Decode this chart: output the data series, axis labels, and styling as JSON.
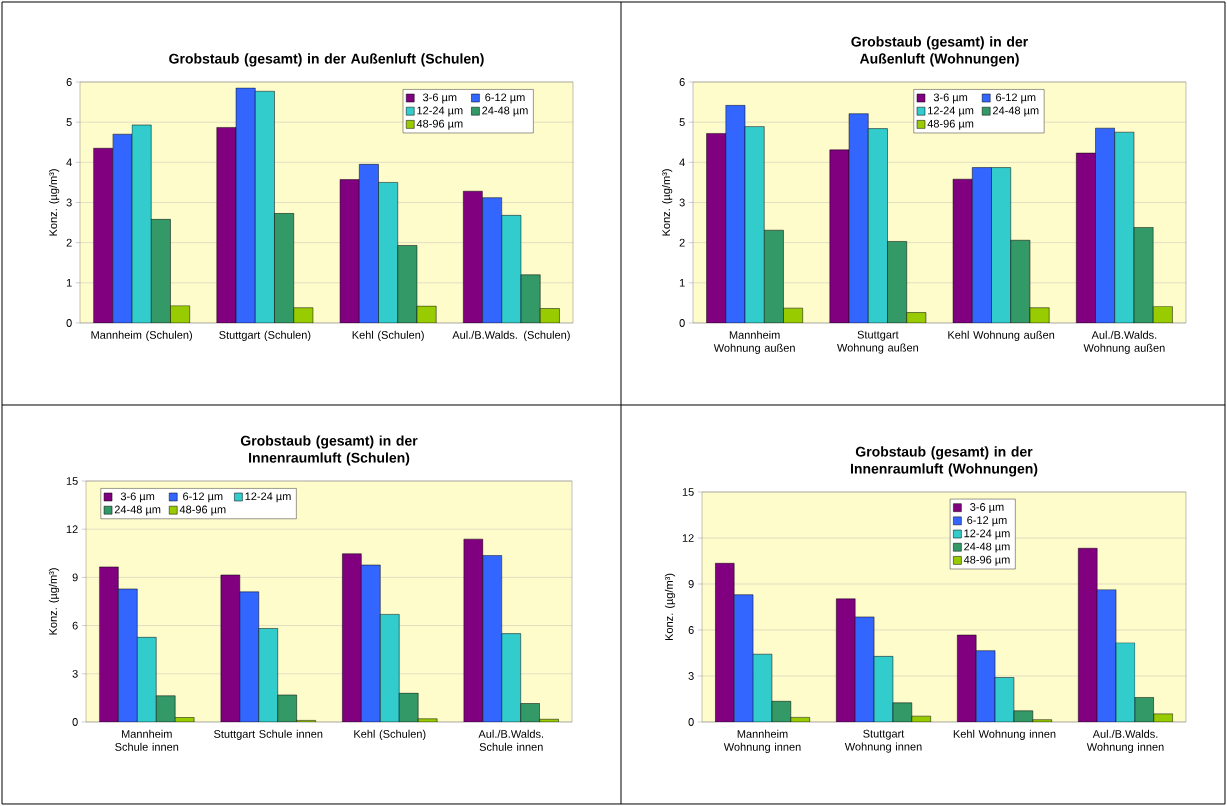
{
  "chart_data": [
    {
      "type": "bar",
      "title": "Grobstaub (gesamt) in der Außenluft (Schulen)",
      "ylabel": "Konz. (µg/m³)",
      "categories": [
        "Mannheim (Schulen)",
        "Stuttgart (Schulen)",
        "Kehl (Schulen)",
        "Aul./B.Walds. (Schulen)"
      ],
      "ylim": [
        0,
        6
      ],
      "yticks": [
        0,
        1,
        2,
        3,
        4,
        5,
        6
      ],
      "grid": "y",
      "legend": "top right",
      "series": [
        {
          "name": "3-6 µm",
          "color": "#800080",
          "values": [
            4.35,
            4.87,
            3.57,
            3.28
          ]
        },
        {
          "name": "6-12 µm",
          "color": "#3366ff",
          "values": [
            4.7,
            5.85,
            3.95,
            3.12
          ]
        },
        {
          "name": "12-24 µm",
          "color": "#33cccc",
          "values": [
            4.93,
            5.77,
            3.5,
            2.68
          ]
        },
        {
          "name": "24-48 µm",
          "color": "#339966",
          "values": [
            2.58,
            2.73,
            1.93,
            1.2
          ]
        },
        {
          "name": "48-96 µm",
          "color": "#99cc00",
          "values": [
            0.43,
            0.38,
            0.42,
            0.36
          ]
        }
      ]
    },
    {
      "type": "bar",
      "title": "Grobstaub (gesamt) in der Außenluft (Wohnungen)",
      "ylabel": "Konz. (µg/m³)",
      "categories": [
        "Mannheim Wohnung außen",
        "Stuttgart Wohnung außen",
        "Kehl Wohnung außen",
        "Aul./B.Walds. Wohnung außen"
      ],
      "ylim": [
        0,
        6
      ],
      "yticks": [
        0,
        1,
        2,
        3,
        4,
        5,
        6
      ],
      "grid": "y",
      "legend": "top",
      "series": [
        {
          "name": "3-6 µm",
          "color": "#800080",
          "values": [
            4.72,
            4.31,
            3.58,
            4.23
          ]
        },
        {
          "name": "6-12 µm",
          "color": "#3366ff",
          "values": [
            5.42,
            5.21,
            3.87,
            4.85
          ]
        },
        {
          "name": "12-24 µm",
          "color": "#33cccc",
          "values": [
            4.89,
            4.84,
            3.87,
            4.75
          ]
        },
        {
          "name": "24-48 µm",
          "color": "#339966",
          "values": [
            2.31,
            2.03,
            2.06,
            2.38
          ]
        },
        {
          "name": "48-96 µm",
          "color": "#99cc00",
          "values": [
            0.37,
            0.26,
            0.38,
            0.41
          ]
        }
      ]
    },
    {
      "type": "bar",
      "title": "Grobstaub (gesamt) in der Innenraumluft (Schulen)",
      "ylabel": "Konz. (µg/m³)",
      "categories": [
        "Mannheim Schule innen",
        "Stuttgart Schule innen",
        "Kehl (Schulen)",
        "Aul./B.Walds. Schule innen"
      ],
      "ylim": [
        0,
        15
      ],
      "yticks": [
        0,
        3,
        6,
        9,
        12,
        15
      ],
      "grid": "y",
      "legend": "top left",
      "series": [
        {
          "name": "3-6 µm",
          "color": "#800080",
          "values": [
            9.65,
            9.15,
            10.47,
            11.38
          ]
        },
        {
          "name": "6-12 µm",
          "color": "#3366ff",
          "values": [
            8.28,
            8.1,
            9.77,
            10.37
          ]
        },
        {
          "name": "12-24 µm",
          "color": "#33cccc",
          "values": [
            5.27,
            5.82,
            6.7,
            5.5
          ]
        },
        {
          "name": "24-48 µm",
          "color": "#339966",
          "values": [
            1.63,
            1.68,
            1.8,
            1.15
          ]
        },
        {
          "name": "48-96 µm",
          "color": "#99cc00",
          "values": [
            0.28,
            0.1,
            0.2,
            0.17
          ]
        }
      ]
    },
    {
      "type": "bar",
      "title": "Grobstaub (gesamt) in der Innenraumluft (Wohnungen)",
      "ylabel": "Konz. (µg/m³)",
      "categories": [
        "Mannheim Wohnung innen",
        "Stuttgart Wohnung innen",
        "Kehl Wohnung innen",
        "Aul./B.Walds. Wohnung innen"
      ],
      "ylim": [
        0,
        15
      ],
      "yticks": [
        0,
        3,
        6,
        9,
        12,
        15
      ],
      "grid": "y",
      "legend": "top",
      "series": [
        {
          "name": "3-6 µm",
          "color": "#800080",
          "values": [
            10.35,
            8.03,
            5.67,
            11.33
          ]
        },
        {
          "name": "6-12 µm",
          "color": "#3366ff",
          "values": [
            8.3,
            6.85,
            4.65,
            8.63
          ]
        },
        {
          "name": "12-24 µm",
          "color": "#33cccc",
          "values": [
            4.42,
            4.28,
            2.9,
            5.17
          ]
        },
        {
          "name": "24-48 µm",
          "color": "#339966",
          "values": [
            1.35,
            1.25,
            0.73,
            1.6
          ]
        },
        {
          "name": "48-96 µm",
          "color": "#99cc00",
          "values": [
            0.3,
            0.38,
            0.15,
            0.53
          ]
        }
      ]
    }
  ]
}
